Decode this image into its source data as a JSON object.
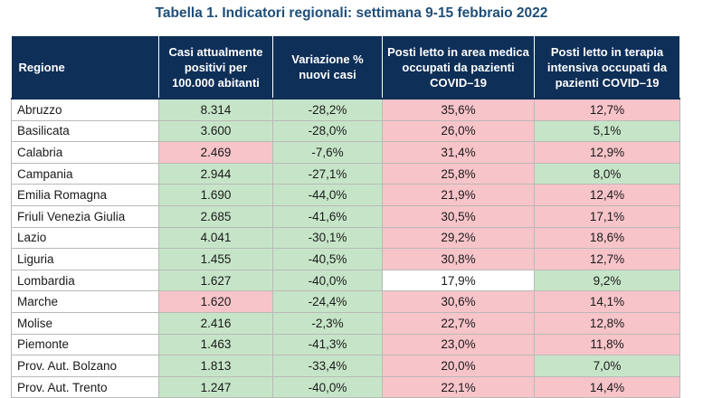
{
  "title": "Tabella 1. Indicatori regionali: settimana 9-15 febbraio 2022",
  "headers": [
    "Regione",
    "Casi attualmente positivi per 100.000 abitanti",
    "Variazione % nuovi casi",
    "Posti letto in area medica occupati da pazienti COVID–19",
    "Posti letto in terapia intensiva occupati da pazienti COVID–19"
  ],
  "cell_colors": {
    "g": "#c6e5c8",
    "r": "#f7c4c9",
    "header": "#0e2f57"
  },
  "rows": [
    {
      "region": "Abruzzo",
      "cases": "8.314",
      "cases_c": "g",
      "var": "-28,2%",
      "var_c": "g",
      "med": "35,6%",
      "med_c": "r",
      "icu": "12,7%",
      "icu_c": "r"
    },
    {
      "region": "Basilicata",
      "cases": "3.600",
      "cases_c": "g",
      "var": "-28,0%",
      "var_c": "g",
      "med": "26,0%",
      "med_c": "r",
      "icu": "5,1%",
      "icu_c": "g"
    },
    {
      "region": "Calabria",
      "cases": "2.469",
      "cases_c": "r",
      "var": "-7,6%",
      "var_c": "g",
      "med": "31,4%",
      "med_c": "r",
      "icu": "12,9%",
      "icu_c": "r"
    },
    {
      "region": "Campania",
      "cases": "2.944",
      "cases_c": "g",
      "var": "-27,1%",
      "var_c": "g",
      "med": "25,8%",
      "med_c": "r",
      "icu": "8,0%",
      "icu_c": "g"
    },
    {
      "region": "Emilia Romagna",
      "cases": "1.690",
      "cases_c": "g",
      "var": "-44,0%",
      "var_c": "g",
      "med": "21,9%",
      "med_c": "r",
      "icu": "12,4%",
      "icu_c": "r"
    },
    {
      "region": "Friuli Venezia Giulia",
      "cases": "2.685",
      "cases_c": "g",
      "var": "-41,6%",
      "var_c": "g",
      "med": "30,5%",
      "med_c": "r",
      "icu": "17,1%",
      "icu_c": "r"
    },
    {
      "region": "Lazio",
      "cases": "4.041",
      "cases_c": "g",
      "var": "-30,1%",
      "var_c": "g",
      "med": "29,2%",
      "med_c": "r",
      "icu": "18,6%",
      "icu_c": "r"
    },
    {
      "region": "Liguria",
      "cases": "1.455",
      "cases_c": "g",
      "var": "-40,5%",
      "var_c": "g",
      "med": "30,8%",
      "med_c": "r",
      "icu": "12,7%",
      "icu_c": "r"
    },
    {
      "region": "Lombardia",
      "cases": "1.627",
      "cases_c": "g",
      "var": "-40,0%",
      "var_c": "g",
      "med": "17,9%",
      "med_c": "w",
      "icu": "9,2%",
      "icu_c": "g"
    },
    {
      "region": "Marche",
      "cases": "1.620",
      "cases_c": "r",
      "var": "-24,4%",
      "var_c": "g",
      "med": "30,6%",
      "med_c": "r",
      "icu": "14,1%",
      "icu_c": "r"
    },
    {
      "region": "Molise",
      "cases": "2.416",
      "cases_c": "g",
      "var": "-2,3%",
      "var_c": "g",
      "med": "22,7%",
      "med_c": "r",
      "icu": "12,8%",
      "icu_c": "r"
    },
    {
      "region": "Piemonte",
      "cases": "1.463",
      "cases_c": "g",
      "var": "-41,3%",
      "var_c": "g",
      "med": "23,0%",
      "med_c": "r",
      "icu": "11,8%",
      "icu_c": "r"
    },
    {
      "region": "Prov. Aut. Bolzano",
      "cases": "1.813",
      "cases_c": "g",
      "var": "-33,4%",
      "var_c": "g",
      "med": "20,0%",
      "med_c": "r",
      "icu": "7,0%",
      "icu_c": "g"
    },
    {
      "region": "Prov. Aut. Trento",
      "cases": "1.247",
      "cases_c": "g",
      "var": "-40,0%",
      "var_c": "g",
      "med": "22,1%",
      "med_c": "r",
      "icu": "14,4%",
      "icu_c": "r"
    }
  ]
}
